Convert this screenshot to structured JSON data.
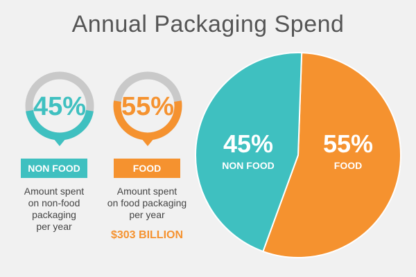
{
  "title": "Annual Packaging Spend",
  "colors": {
    "nonfood": "#3fc0c0",
    "food": "#f5922f",
    "ring_gray": "#c9c9c9"
  },
  "badges": [
    {
      "key": "nonfood",
      "percent": "45%",
      "label": "NON FOOD",
      "desc_lines": [
        "Amount spent",
        "on non-food",
        "packaging",
        "per year"
      ],
      "fill_fraction": 0.45
    },
    {
      "key": "food",
      "percent": "55%",
      "label": "FOOD",
      "desc_lines": [
        "Amount spent",
        "on food packaging",
        "per year"
      ],
      "amount": "$303 BILLION",
      "fill_fraction": 0.55
    }
  ],
  "chart_data": {
    "type": "pie",
    "title": "Annual Packaging Spend",
    "slices": [
      {
        "name": "NON FOOD",
        "value": 45,
        "label": "45%",
        "color": "#3fc0c0"
      },
      {
        "name": "FOOD",
        "value": 55,
        "label": "55%",
        "color": "#f5922f"
      }
    ]
  }
}
